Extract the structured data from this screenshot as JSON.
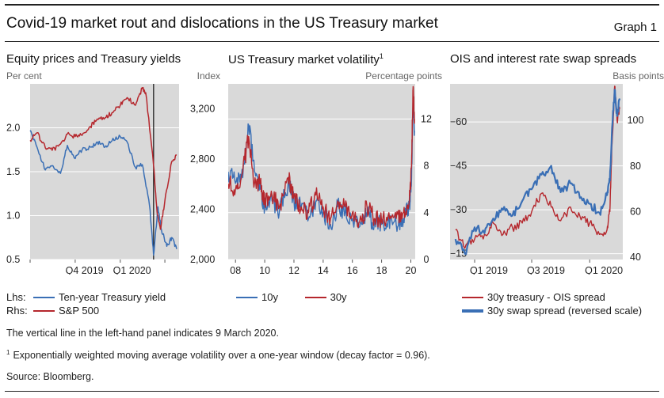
{
  "header": {
    "title": "Covid-19 market rout and dislocations in the US Treasury market",
    "graph_no": "Graph 1"
  },
  "colors": {
    "blue": "#3a6fb5",
    "red": "#b5272d",
    "plot_bg": "#d9d9d9",
    "grid": "#ffffff"
  },
  "panels": {
    "p1": {
      "title": "Equity prices and Treasury yields",
      "unit_left": "Per cent",
      "unit_right": "Index",
      "legend": [
        {
          "prefix": "Lhs:",
          "label": "Ten-year Treasury yield"
        },
        {
          "prefix": "Rhs:",
          "label": "S&P 500"
        }
      ]
    },
    "p2": {
      "title": "US Treasury market volatility",
      "title_sup": "1",
      "unit_right": "Percentage points",
      "legend": [
        {
          "label": "10y"
        },
        {
          "label": "30y"
        }
      ]
    },
    "p3": {
      "title": "OIS and interest rate swap spreads",
      "unit_right": "Basis points",
      "legend": [
        {
          "label": "30y treasury - OIS spread"
        },
        {
          "label": "30y swap spread (reversed scale)"
        }
      ]
    }
  },
  "footnotes": {
    "note": "The vertical line in the left-hand panel indicates 9 March 2020.",
    "fn_mark": "1",
    "fn_text": "Exponentially weighted moving average volatility over a one-year window (decay factor = 0.96).",
    "source": "Source: Bloomberg."
  },
  "chart_data": [
    {
      "type": "line",
      "title": "Equity prices and Treasury yields",
      "x_ticks": [
        "Q4 2019",
        "Q1 2020"
      ],
      "x_range": [
        "2019-07-01",
        "2020-04-30"
      ],
      "vline": "2020-03-09",
      "y_left": {
        "label": "Per cent",
        "ticks": [
          0.5,
          1.0,
          1.5,
          2.0
        ],
        "ylim": [
          0.5,
          2.5
        ]
      },
      "y_right": {
        "label": "Index",
        "ticks": [
          2000,
          2400,
          2800,
          3200
        ],
        "ylim": [
          2000,
          3400
        ]
      },
      "series": [
        {
          "name": "Ten-year Treasury yield",
          "axis": "left",
          "color": "blue",
          "x": [
            "2019-07-01",
            "2019-07-15",
            "2019-08-01",
            "2019-08-15",
            "2019-09-01",
            "2019-09-15",
            "2019-10-01",
            "2019-10-15",
            "2019-11-01",
            "2019-11-15",
            "2019-12-01",
            "2019-12-15",
            "2020-01-01",
            "2020-01-15",
            "2020-02-01",
            "2020-02-15",
            "2020-03-01",
            "2020-03-09",
            "2020-03-18",
            "2020-03-25",
            "2020-04-05",
            "2020-04-15",
            "2020-04-25"
          ],
          "values": [
            1.97,
            1.78,
            1.52,
            1.57,
            1.48,
            1.8,
            1.65,
            1.75,
            1.78,
            1.84,
            1.78,
            1.85,
            1.9,
            1.84,
            1.55,
            1.58,
            1.1,
            0.55,
            1.1,
            0.84,
            0.65,
            0.75,
            0.62
          ]
        },
        {
          "name": "S&P 500",
          "axis": "right",
          "color": "red",
          "x": [
            "2019-07-01",
            "2019-07-15",
            "2019-08-01",
            "2019-08-15",
            "2019-09-01",
            "2019-09-15",
            "2019-10-01",
            "2019-10-15",
            "2019-11-01",
            "2019-11-15",
            "2019-12-01",
            "2019-12-15",
            "2020-01-01",
            "2020-01-15",
            "2020-02-01",
            "2020-02-15",
            "2020-02-22",
            "2020-03-09",
            "2020-03-16",
            "2020-03-23",
            "2020-04-01",
            "2020-04-15",
            "2020-04-25"
          ],
          "values": [
            2950,
            3010,
            2890,
            2870,
            2920,
            3000,
            2980,
            2990,
            3060,
            3120,
            3130,
            3170,
            3230,
            3290,
            3230,
            3370,
            3330,
            2750,
            2380,
            2240,
            2470,
            2780,
            2830
          ]
        }
      ]
    },
    {
      "type": "line",
      "title": "US Treasury market volatility",
      "x_ticks": [
        "08",
        "10",
        "12",
        "14",
        "16",
        "18",
        "20"
      ],
      "x_range": [
        2007.5,
        2020.3
      ],
      "y_right": {
        "label": "Percentage points",
        "ticks": [
          0,
          4,
          8,
          12
        ],
        "ylim": [
          0,
          15
        ]
      },
      "series": [
        {
          "name": "10y",
          "color": "blue",
          "x": [
            2007.5,
            2008.0,
            2008.5,
            2008.9,
            2009.3,
            2009.7,
            2010.0,
            2010.5,
            2011.0,
            2011.6,
            2012.0,
            2012.5,
            2013.0,
            2013.5,
            2014.0,
            2014.5,
            2015.0,
            2015.5,
            2016.0,
            2016.5,
            2017.0,
            2017.5,
            2018.0,
            2018.5,
            2019.0,
            2019.5,
            2019.9,
            2020.05,
            2020.15,
            2020.25
          ],
          "values": [
            7.5,
            6.5,
            7.0,
            11.5,
            7.5,
            6.0,
            4.5,
            5.0,
            4.0,
            6.5,
            5.0,
            4.5,
            3.5,
            5.0,
            4.0,
            3.0,
            4.5,
            4.0,
            3.5,
            2.8,
            4.0,
            3.0,
            3.0,
            3.5,
            3.0,
            3.5,
            4.5,
            7.0,
            13.5,
            11.0
          ]
        },
        {
          "name": "30y",
          "color": "red",
          "x": [
            2007.5,
            2008.0,
            2008.5,
            2008.9,
            2009.3,
            2009.7,
            2010.0,
            2010.5,
            2011.0,
            2011.6,
            2012.0,
            2012.5,
            2013.0,
            2013.5,
            2014.0,
            2014.5,
            2015.0,
            2015.5,
            2016.0,
            2016.5,
            2017.0,
            2017.5,
            2018.0,
            2018.5,
            2019.0,
            2019.5,
            2019.9,
            2020.05,
            2020.15,
            2020.25
          ],
          "values": [
            6.5,
            6.0,
            7.5,
            10.5,
            6.5,
            6.5,
            5.0,
            5.5,
            4.5,
            7.0,
            5.5,
            4.5,
            4.0,
            5.5,
            4.5,
            3.5,
            5.0,
            4.5,
            4.0,
            3.2,
            4.5,
            3.5,
            3.2,
            4.0,
            3.5,
            4.0,
            5.0,
            8.0,
            14.5,
            12.0
          ]
        }
      ]
    },
    {
      "type": "line",
      "title": "OIS and interest rate swap spreads",
      "x_ticks": [
        "Q1 2019",
        "Q3 2019",
        "Q1 2020"
      ],
      "x_range": [
        "2018-10-15",
        "2020-04-15"
      ],
      "y_left": {
        "ticks": [
          -15,
          -30,
          -45,
          -60
        ],
        "ylim": [
          -13,
          -73
        ],
        "reversed": true
      },
      "y_right": {
        "label": "Basis points",
        "ticks": [
          40,
          60,
          80,
          100
        ],
        "ylim": [
          39,
          116
        ]
      },
      "series": [
        {
          "name": "30y treasury - OIS spread",
          "axis": "right",
          "color": "red",
          "x": [
            "2018-11-01",
            "2018-12-01",
            "2019-01-01",
            "2019-02-01",
            "2019-03-01",
            "2019-04-01",
            "2019-05-01",
            "2019-06-01",
            "2019-07-01",
            "2019-08-01",
            "2019-09-01",
            "2019-10-01",
            "2019-11-01",
            "2019-12-01",
            "2020-01-01",
            "2020-02-01",
            "2020-02-25",
            "2020-03-05",
            "2020-03-12",
            "2020-03-20",
            "2020-03-28",
            "2020-04-05"
          ],
          "values": [
            52,
            44,
            48,
            50,
            55,
            50,
            53,
            55,
            60,
            68,
            62,
            56,
            62,
            58,
            55,
            50,
            52,
            60,
            90,
            115,
            100,
            105
          ]
        },
        {
          "name": "30y swap spread (reversed scale)",
          "axis": "left",
          "color": "blue",
          "x": [
            "2018-11-01",
            "2018-12-01",
            "2019-01-01",
            "2019-02-01",
            "2019-03-01",
            "2019-04-01",
            "2019-05-01",
            "2019-06-01",
            "2019-07-01",
            "2019-08-01",
            "2019-09-01",
            "2019-10-01",
            "2019-11-01",
            "2019-12-01",
            "2020-01-01",
            "2020-02-01",
            "2020-02-25",
            "2020-03-05",
            "2020-03-12",
            "2020-03-20",
            "2020-03-28",
            "2020-04-05"
          ],
          "values": [
            -20,
            -15,
            -24,
            -22,
            -27,
            -30,
            -28,
            -33,
            -37,
            -42,
            -45,
            -36,
            -39,
            -34,
            -32,
            -29,
            -35,
            -40,
            -58,
            -71,
            -62,
            -68
          ]
        }
      ]
    }
  ]
}
